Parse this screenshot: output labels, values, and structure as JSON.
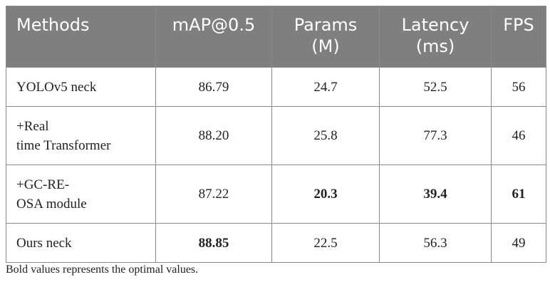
{
  "table": {
    "headers": [
      "Methods",
      "mAP@0.5",
      "Params\n(M)",
      "Latency\n(ms)",
      "FPS"
    ],
    "rows": [
      {
        "method": "YOLOv5 neck",
        "map": "86.79",
        "params": "24.7",
        "latency": "52.5",
        "fps": "56"
      },
      {
        "method": "+Real\ntime Transformer",
        "map": "88.20",
        "params": "25.8",
        "latency": "77.3",
        "fps": "46"
      },
      {
        "method": "+GC-RE-\nOSA module",
        "map": "87.22",
        "params": "20.3",
        "latency": "39.4",
        "fps": "61"
      },
      {
        "method": "Ours neck",
        "map": "88.85",
        "params": "22.5",
        "latency": "56.3",
        "fps": "49"
      }
    ],
    "bold_cells": [
      "rows.2.params",
      "rows.2.latency",
      "rows.2.fps",
      "rows.3.map"
    ]
  },
  "footnote": "Bold values represents the optimal values.",
  "colors": {
    "header_bg": "#7f7f7f",
    "header_text": "#ffffff",
    "border": "#8a8a8a"
  }
}
